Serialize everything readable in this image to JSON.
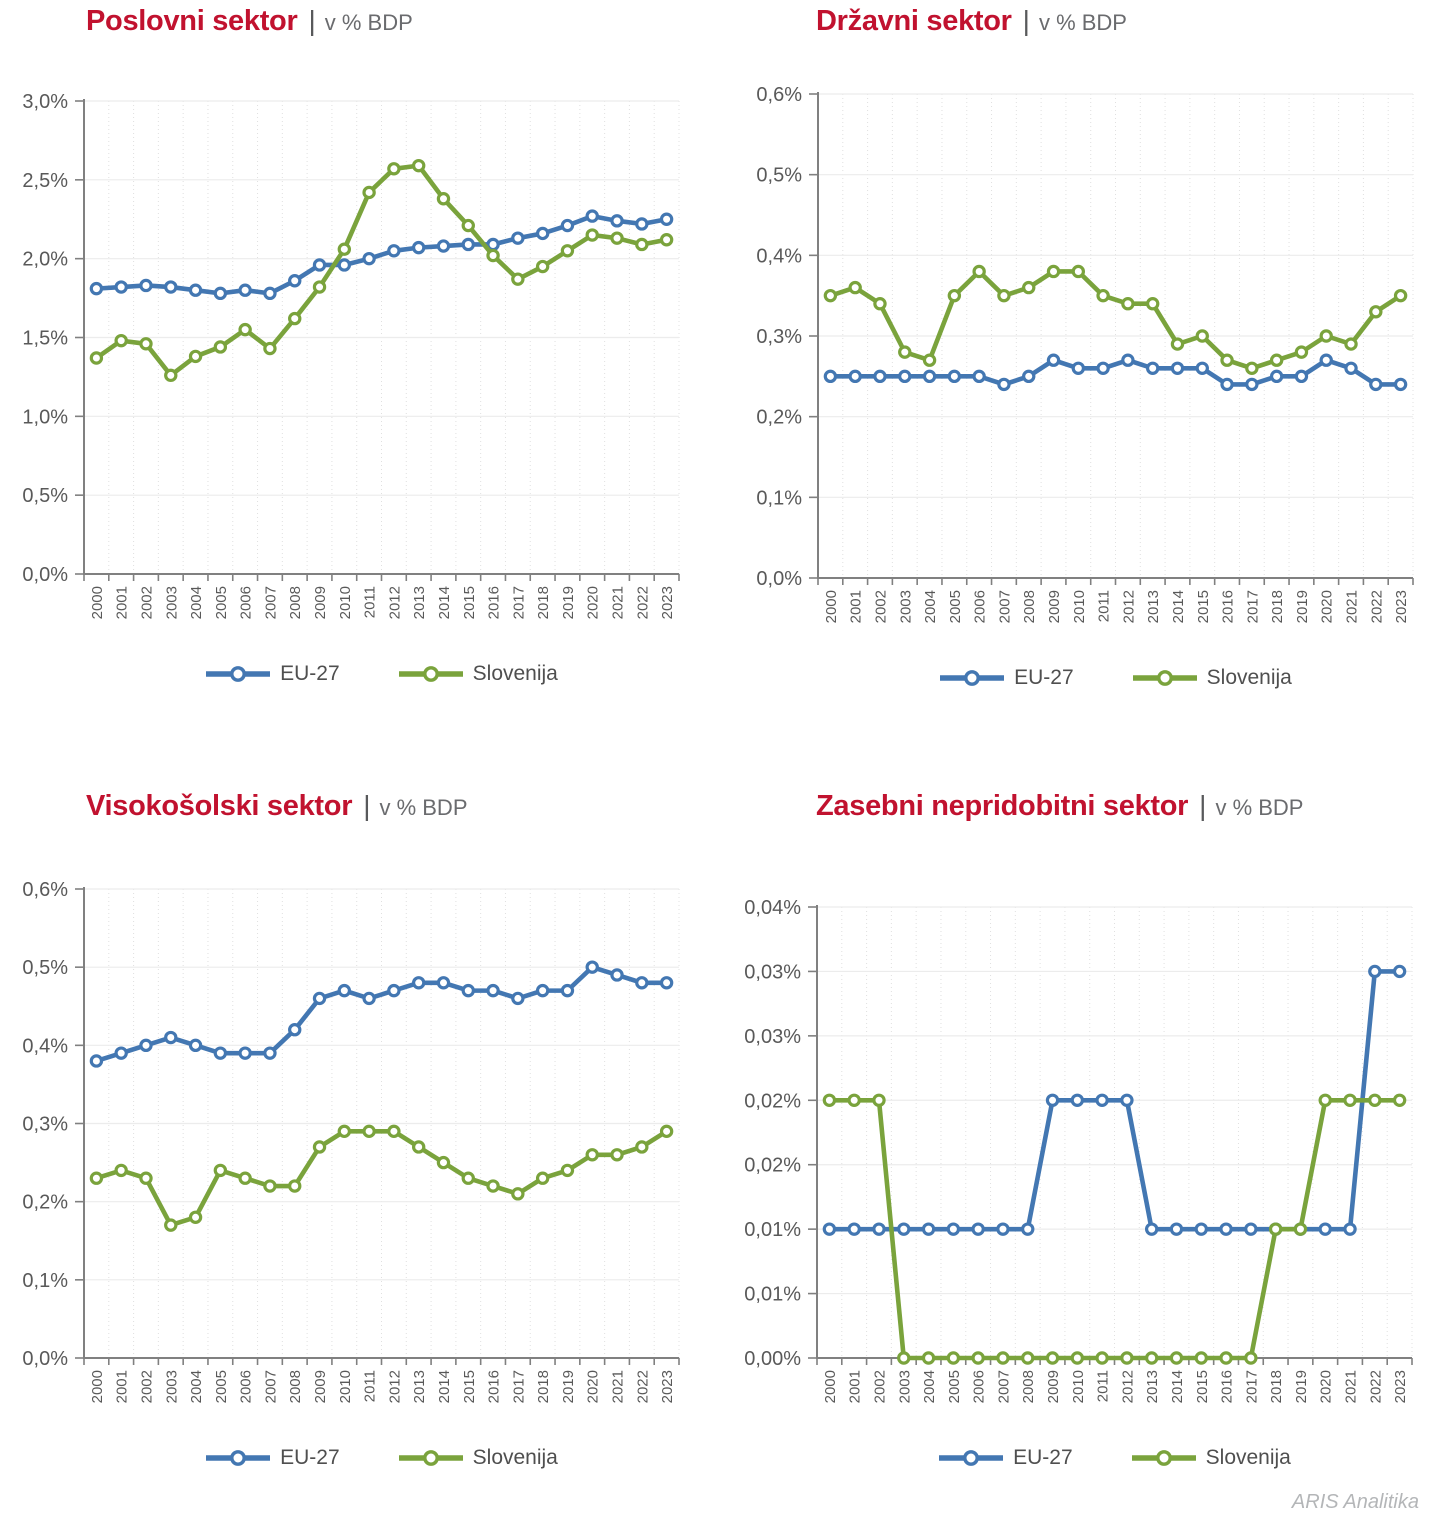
{
  "ui": {
    "title_separator": "|",
    "watermark": "ARIS Analitika",
    "colors": {
      "title_red": "#c1122f",
      "text_gray": "#595959",
      "axis_gray": "#808080",
      "grid_gray": "#ececec",
      "eu_blue": "#4377b2",
      "slo_green": "#7aa33c"
    }
  },
  "chart_data": [
    {
      "id": "poslovni-sektor",
      "type": "line",
      "title": "Poslovni sektor",
      "subtitle": "v % BDP",
      "xlabel": "",
      "ylabel": "",
      "grid": true,
      "legend_position": "bottom",
      "ylim": [
        0,
        3.0
      ],
      "yticks": {
        "values": [
          0,
          0.5,
          1.0,
          1.5,
          2.0,
          2.5,
          3.0
        ],
        "labels": [
          "0,0%",
          "0,5%",
          "1,0%",
          "1,5%",
          "2,0%",
          "2,5%",
          "3,0%"
        ]
      },
      "categories": [
        "2000",
        "2001",
        "2002",
        "2003",
        "2004",
        "2005",
        "2006",
        "2007",
        "2008",
        "2009",
        "2010",
        "2011",
        "2012",
        "2013",
        "2014",
        "2015",
        "2016",
        "2017",
        "2018",
        "2019",
        "2020",
        "2021",
        "2022",
        "2023"
      ],
      "series": [
        {
          "name": "EU-27",
          "color": "#4377b2",
          "values": [
            1.81,
            1.82,
            1.83,
            1.82,
            1.8,
            1.78,
            1.8,
            1.78,
            1.86,
            1.96,
            1.96,
            2.0,
            2.05,
            2.07,
            2.08,
            2.09,
            2.09,
            2.13,
            2.16,
            2.21,
            2.27,
            2.24,
            2.22,
            2.25
          ]
        },
        {
          "name": "Slovenija",
          "color": "#7aa33c",
          "values": [
            1.37,
            1.48,
            1.46,
            1.26,
            1.38,
            1.44,
            1.55,
            1.43,
            1.62,
            1.82,
            2.06,
            2.42,
            2.57,
            2.59,
            2.38,
            2.21,
            2.02,
            1.87,
            1.95,
            2.05,
            2.15,
            2.13,
            2.09,
            2.12
          ]
        }
      ]
    },
    {
      "id": "drzavni-sektor",
      "type": "line",
      "title": "Državni sektor",
      "subtitle": "v % BDP",
      "xlabel": "",
      "ylabel": "",
      "grid": true,
      "legend_position": "bottom",
      "ylim": [
        0,
        0.6
      ],
      "yticks": {
        "values": [
          0,
          0.1,
          0.2,
          0.3,
          0.4,
          0.5,
          0.6
        ],
        "labels": [
          "0,0%",
          "0,1%",
          "0,2%",
          "0,3%",
          "0,4%",
          "0,5%",
          "0,6%"
        ]
      },
      "categories": [
        "2000",
        "2001",
        "2002",
        "2003",
        "2004",
        "2005",
        "2006",
        "2007",
        "2008",
        "2009",
        "2010",
        "2011",
        "2012",
        "2013",
        "2014",
        "2015",
        "2016",
        "2017",
        "2018",
        "2019",
        "2020",
        "2021",
        "2022",
        "2023"
      ],
      "series": [
        {
          "name": "EU-27",
          "color": "#4377b2",
          "values": [
            0.25,
            0.25,
            0.25,
            0.25,
            0.25,
            0.25,
            0.25,
            0.24,
            0.25,
            0.27,
            0.26,
            0.26,
            0.27,
            0.26,
            0.26,
            0.26,
            0.24,
            0.24,
            0.25,
            0.25,
            0.27,
            0.26,
            0.24,
            0.24
          ]
        },
        {
          "name": "Slovenija",
          "color": "#7aa33c",
          "values": [
            0.35,
            0.36,
            0.34,
            0.28,
            0.27,
            0.35,
            0.38,
            0.35,
            0.36,
            0.38,
            0.38,
            0.35,
            0.34,
            0.34,
            0.29,
            0.3,
            0.27,
            0.26,
            0.27,
            0.28,
            0.3,
            0.29,
            0.33,
            0.35
          ]
        }
      ]
    },
    {
      "id": "visokosolski-sektor",
      "type": "line",
      "title": "Visokošolski sektor",
      "subtitle": "v % BDP",
      "xlabel": "",
      "ylabel": "",
      "grid": true,
      "legend_position": "bottom",
      "ylim": [
        0,
        0.6
      ],
      "yticks": {
        "values": [
          0,
          0.1,
          0.2,
          0.3,
          0.4,
          0.5,
          0.6
        ],
        "labels": [
          "0,0%",
          "0,1%",
          "0,2%",
          "0,3%",
          "0,4%",
          "0,5%",
          "0,6%"
        ]
      },
      "categories": [
        "2000",
        "2001",
        "2002",
        "2003",
        "2004",
        "2005",
        "2006",
        "2007",
        "2008",
        "2009",
        "2010",
        "2011",
        "2012",
        "2013",
        "2014",
        "2015",
        "2016",
        "2017",
        "2018",
        "2019",
        "2020",
        "2021",
        "2022",
        "2023"
      ],
      "series": [
        {
          "name": "EU-27",
          "color": "#4377b2",
          "values": [
            0.38,
            0.39,
            0.4,
            0.41,
            0.4,
            0.39,
            0.39,
            0.39,
            0.42,
            0.46,
            0.47,
            0.46,
            0.47,
            0.48,
            0.48,
            0.47,
            0.47,
            0.46,
            0.47,
            0.47,
            0.5,
            0.49,
            0.48,
            0.48
          ]
        },
        {
          "name": "Slovenija",
          "color": "#7aa33c",
          "values": [
            0.23,
            0.24,
            0.23,
            0.17,
            0.18,
            0.24,
            0.23,
            0.22,
            0.22,
            0.27,
            0.29,
            0.29,
            0.29,
            0.27,
            0.25,
            0.23,
            0.22,
            0.21,
            0.23,
            0.24,
            0.26,
            0.26,
            0.27,
            0.29
          ]
        }
      ]
    },
    {
      "id": "zasebni-nepridobitni-sektor",
      "type": "line",
      "title": "Zasebni nepridobitni sektor",
      "subtitle": "v % BDP",
      "xlabel": "",
      "ylabel": "",
      "grid": true,
      "legend_position": "bottom",
      "ylim": [
        0,
        0.035
      ],
      "yticks": {
        "values": [
          0,
          0.005,
          0.01,
          0.015,
          0.02,
          0.025,
          0.03,
          0.035
        ],
        "labels": [
          "0,00%",
          "0,01%",
          "0,01%",
          "0,02%",
          "0,02%",
          "0,03%",
          "0,03%",
          "0,04%"
        ]
      },
      "categories": [
        "2000",
        "2001",
        "2002",
        "2003",
        "2004",
        "2005",
        "2006",
        "2007",
        "2008",
        "2009",
        "2010",
        "2011",
        "2012",
        "2013",
        "2014",
        "2015",
        "2016",
        "2017",
        "2018",
        "2019",
        "2020",
        "2021",
        "2022",
        "2023"
      ],
      "series": [
        {
          "name": "EU-27",
          "color": "#4377b2",
          "values": [
            0.01,
            0.01,
            0.01,
            0.01,
            0.01,
            0.01,
            0.01,
            0.01,
            0.01,
            0.02,
            0.02,
            0.02,
            0.02,
            0.01,
            0.01,
            0.01,
            0.01,
            0.01,
            0.01,
            0.01,
            0.01,
            0.01,
            0.03,
            0.03
          ]
        },
        {
          "name": "Slovenija",
          "color": "#7aa33c",
          "values": [
            0.02,
            0.02,
            0.02,
            0.0,
            0.0,
            0.0,
            0.0,
            0.0,
            0.0,
            0.0,
            0.0,
            0.0,
            0.0,
            0.0,
            0.0,
            0.0,
            0.0,
            0.0,
            0.01,
            0.01,
            0.02,
            0.02,
            0.02,
            0.02
          ]
        }
      ]
    }
  ]
}
